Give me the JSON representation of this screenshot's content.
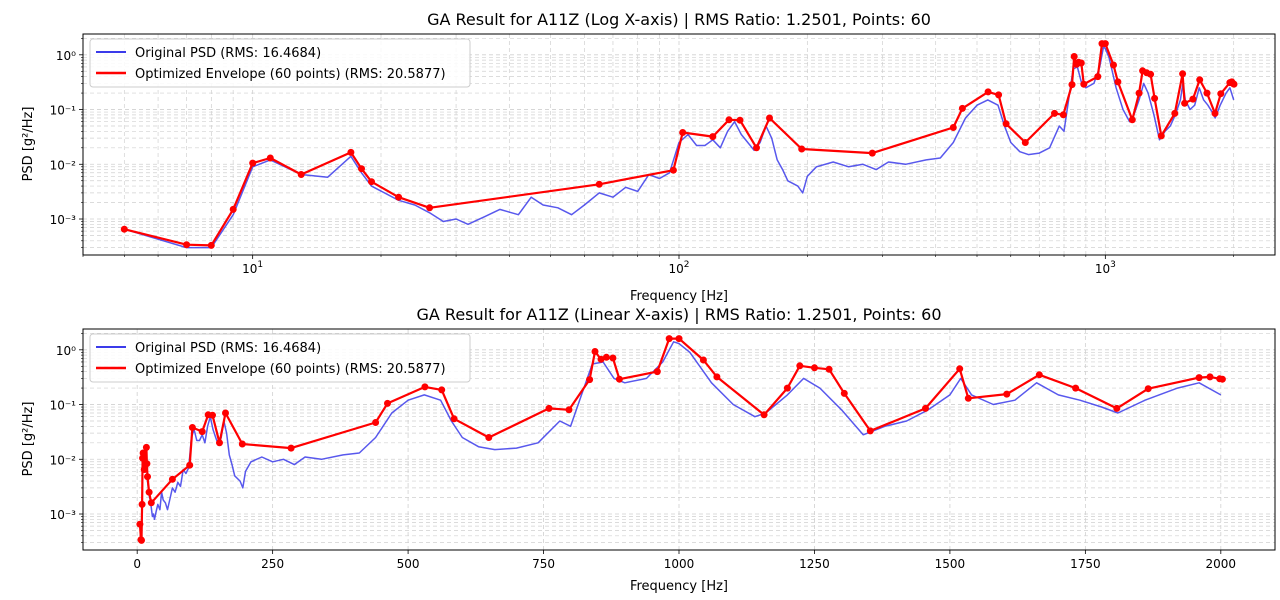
{
  "figure": {
    "top_title": "GA Result for A11Z (Log X-axis) | RMS Ratio: 1.2501, Points: 60",
    "bottom_title": "GA Result for A11Z (Linear X-axis) | RMS Ratio: 1.2501, Points: 60",
    "xlabel": "Frequency [Hz]",
    "ylabel": "PSD [g²/Hz]",
    "legend": {
      "original": "Original PSD (RMS: 16.4684)",
      "optimized": "Optimized Envelope (60 points) (RMS: 20.5877)"
    },
    "colors": {
      "original": "#3b3bea",
      "optimized": "#ff0000",
      "grid": "#d0d0d0"
    }
  },
  "chart_data": [
    {
      "type": "line",
      "title": "GA Result for A11Z (Log X-axis) | RMS Ratio: 1.2501, Points: 60",
      "xlabel": "Frequency [Hz]",
      "ylabel": "PSD [g²/Hz]",
      "xscale": "log",
      "yscale": "log",
      "xlim": [
        4,
        2500
      ],
      "ylim": [
        0.00022,
        2.4
      ],
      "x_ticks": [
        {
          "value": 10,
          "base": "10",
          "exp": "1"
        },
        {
          "value": 100,
          "base": "10",
          "exp": "2"
        },
        {
          "value": 1000,
          "base": "10",
          "exp": "3"
        }
      ],
      "y_ticks": [
        {
          "value": 0.001,
          "label": "10⁻³"
        },
        {
          "value": 0.01,
          "label": "10⁻²"
        },
        {
          "value": 0.1,
          "label": "10⁻¹"
        },
        {
          "value": 1,
          "label": "10⁰"
        }
      ],
      "grid": true,
      "legend_position": "top-left"
    },
    {
      "type": "line",
      "title": "GA Result for A11Z (Linear X-axis) | RMS Ratio: 1.2501, Points: 60",
      "xlabel": "Frequency [Hz]",
      "ylabel": "PSD [g²/Hz]",
      "xscale": "linear",
      "yscale": "log",
      "xlim": [
        -100,
        2100
      ],
      "ylim": [
        0.00022,
        2.4
      ],
      "x_ticks": [
        {
          "value": 0,
          "label": "0"
        },
        {
          "value": 250,
          "label": "250"
        },
        {
          "value": 500,
          "label": "500"
        },
        {
          "value": 750,
          "label": "750"
        },
        {
          "value": 1000,
          "label": "1000"
        },
        {
          "value": 1250,
          "label": "1250"
        },
        {
          "value": 1500,
          "label": "1500"
        },
        {
          "value": 1750,
          "label": "1750"
        },
        {
          "value": 2000,
          "label": "2000"
        }
      ],
      "y_ticks": [
        {
          "value": 0.001,
          "label": "10⁻³"
        },
        {
          "value": 0.01,
          "label": "10⁻²"
        },
        {
          "value": 0.1,
          "label": "10⁻¹"
        },
        {
          "value": 1,
          "label": "10⁰"
        }
      ],
      "grid": true,
      "legend_position": "top-left"
    }
  ],
  "series": {
    "original_psd": [
      [
        5,
        0.00065
      ],
      [
        7,
        0.0003
      ],
      [
        8,
        0.0003
      ],
      [
        9,
        0.0012
      ],
      [
        10,
        0.009
      ],
      [
        11,
        0.012
      ],
      [
        13,
        0.0065
      ],
      [
        15,
        0.0058
      ],
      [
        17,
        0.014
      ],
      [
        18,
        0.007
      ],
      [
        19,
        0.004
      ],
      [
        22,
        0.0022
      ],
      [
        24,
        0.0018
      ],
      [
        26,
        0.0013
      ],
      [
        28,
        0.0009
      ],
      [
        30,
        0.001
      ],
      [
        32,
        0.0008
      ],
      [
        35,
        0.0011
      ],
      [
        38,
        0.0015
      ],
      [
        42,
        0.0012
      ],
      [
        45,
        0.0025
      ],
      [
        48,
        0.0018
      ],
      [
        52,
        0.0016
      ],
      [
        56,
        0.0012
      ],
      [
        60,
        0.0018
      ],
      [
        65,
        0.003
      ],
      [
        70,
        0.0025
      ],
      [
        75,
        0.0038
      ],
      [
        80,
        0.0032
      ],
      [
        85,
        0.0065
      ],
      [
        90,
        0.0055
      ],
      [
        95,
        0.007
      ],
      [
        100,
        0.025
      ],
      [
        105,
        0.035
      ],
      [
        110,
        0.022
      ],
      [
        115,
        0.022
      ],
      [
        120,
        0.028
      ],
      [
        125,
        0.02
      ],
      [
        130,
        0.04
      ],
      [
        135,
        0.06
      ],
      [
        140,
        0.035
      ],
      [
        145,
        0.025
      ],
      [
        150,
        0.018
      ],
      [
        155,
        0.025
      ],
      [
        160,
        0.05
      ],
      [
        165,
        0.03
      ],
      [
        170,
        0.012
      ],
      [
        175,
        0.008
      ],
      [
        180,
        0.005
      ],
      [
        190,
        0.004
      ],
      [
        195,
        0.003
      ],
      [
        200,
        0.006
      ],
      [
        210,
        0.009
      ],
      [
        230,
        0.011
      ],
      [
        250,
        0.009
      ],
      [
        270,
        0.01
      ],
      [
        290,
        0.008
      ],
      [
        310,
        0.011
      ],
      [
        340,
        0.01
      ],
      [
        380,
        0.012
      ],
      [
        410,
        0.013
      ],
      [
        440,
        0.025
      ],
      [
        470,
        0.07
      ],
      [
        500,
        0.12
      ],
      [
        530,
        0.15
      ],
      [
        560,
        0.12
      ],
      [
        580,
        0.05
      ],
      [
        600,
        0.025
      ],
      [
        630,
        0.017
      ],
      [
        660,
        0.015
      ],
      [
        700,
        0.016
      ],
      [
        740,
        0.02
      ],
      [
        780,
        0.05
      ],
      [
        800,
        0.04
      ],
      [
        820,
        0.15
      ],
      [
        840,
        0.55
      ],
      [
        860,
        0.6
      ],
      [
        880,
        0.3
      ],
      [
        900,
        0.25
      ],
      [
        940,
        0.3
      ],
      [
        970,
        0.6
      ],
      [
        990,
        1.4
      ],
      [
        1000,
        1.3
      ],
      [
        1020,
        0.9
      ],
      [
        1060,
        0.25
      ],
      [
        1100,
        0.1
      ],
      [
        1140,
        0.06
      ],
      [
        1160,
        0.07
      ],
      [
        1200,
        0.15
      ],
      [
        1230,
        0.3
      ],
      [
        1260,
        0.2
      ],
      [
        1300,
        0.08
      ],
      [
        1340,
        0.028
      ],
      [
        1380,
        0.04
      ],
      [
        1420,
        0.05
      ],
      [
        1460,
        0.08
      ],
      [
        1500,
        0.15
      ],
      [
        1520,
        0.3
      ],
      [
        1540,
        0.15
      ],
      [
        1580,
        0.1
      ],
      [
        1620,
        0.12
      ],
      [
        1660,
        0.25
      ],
      [
        1700,
        0.15
      ],
      [
        1740,
        0.12
      ],
      [
        1780,
        0.09
      ],
      [
        1810,
        0.07
      ],
      [
        1860,
        0.12
      ],
      [
        1920,
        0.2
      ],
      [
        1960,
        0.25
      ],
      [
        2000,
        0.15
      ]
    ],
    "optimized_envelope": [
      [
        5,
        0.00065
      ],
      [
        7,
        0.00034
      ],
      [
        8,
        0.00033
      ],
      [
        9,
        0.0015
      ],
      [
        10,
        0.0105
      ],
      [
        11,
        0.013
      ],
      [
        13,
        0.0065
      ],
      [
        17,
        0.0165
      ],
      [
        18,
        0.0083
      ],
      [
        19,
        0.0048
      ],
      [
        22,
        0.0025
      ],
      [
        26,
        0.0016
      ],
      [
        65,
        0.0043
      ],
      [
        97,
        0.0078
      ],
      [
        102,
        0.038
      ],
      [
        120,
        0.032
      ],
      [
        131,
        0.065
      ],
      [
        139,
        0.064
      ],
      [
        152,
        0.02
      ],
      [
        163,
        0.07
      ],
      [
        194,
        0.019
      ],
      [
        284,
        0.016
      ],
      [
        440,
        0.047
      ],
      [
        462,
        0.105
      ],
      [
        531,
        0.21
      ],
      [
        562,
        0.185
      ],
      [
        585,
        0.055
      ],
      [
        649,
        0.025
      ],
      [
        760,
        0.085
      ],
      [
        797,
        0.08
      ],
      [
        835,
        0.285
      ],
      [
        845,
        0.93
      ],
      [
        856,
        0.67
      ],
      [
        866,
        0.73
      ],
      [
        878,
        0.71
      ],
      [
        890,
        0.29
      ],
      [
        960,
        0.4
      ],
      [
        982,
        1.6
      ],
      [
        1000,
        1.6
      ],
      [
        1045,
        0.65
      ],
      [
        1070,
        0.32
      ],
      [
        1157,
        0.065
      ],
      [
        1200,
        0.2
      ],
      [
        1223,
        0.51
      ],
      [
        1250,
        0.47
      ],
      [
        1277,
        0.44
      ],
      [
        1305,
        0.16
      ],
      [
        1353,
        0.033
      ],
      [
        1455,
        0.085
      ],
      [
        1518,
        0.45
      ],
      [
        1534,
        0.13
      ],
      [
        1605,
        0.155
      ],
      [
        1665,
        0.35
      ],
      [
        1732,
        0.2
      ],
      [
        1808,
        0.085
      ],
      [
        1866,
        0.195
      ],
      [
        1960,
        0.31
      ],
      [
        1980,
        0.32
      ],
      [
        1998,
        0.295
      ],
      [
        2003,
        0.29
      ]
    ]
  }
}
